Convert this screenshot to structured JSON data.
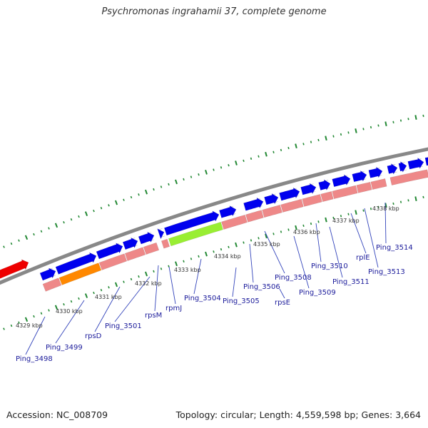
{
  "title": "Psychromonas ingrahamii 37, complete genome",
  "footer": {
    "accession": "Accession: NC_008709",
    "summary": "Topology: circular; Length: 4,559,598 bp; Genes: 3,664"
  },
  "colors": {
    "forward_cds": "#0000ee",
    "reverse_cds": "#ee8888",
    "rna_gene": "#ee0000",
    "highlight_orange": "#ff8800",
    "highlight_green": "#99ee33",
    "backbone": "#888888",
    "tick_green": "#228833",
    "label_blue": "#1a1a9a"
  },
  "kbp_ticks": [
    "4329 kbp",
    "4330 kbp",
    "4331 kbp",
    "4332 kbp",
    "4333 kbp",
    "4334 kbp",
    "4335 kbp",
    "4336 kbp",
    "4337 kbp",
    "4338 kbp"
  ],
  "gene_labels": [
    "Ping_3498",
    "Ping_3499",
    "rpsD",
    "Ping_3501",
    "rpsM",
    "rpmJ",
    "Ping_3504",
    "Ping_3505",
    "Ping_3506",
    "rpsE",
    "Ping_3508",
    "Ping_3509",
    "Ping_3510",
    "Ping_3511",
    "rplE",
    "Ping_3513",
    "Ping_3514"
  ]
}
